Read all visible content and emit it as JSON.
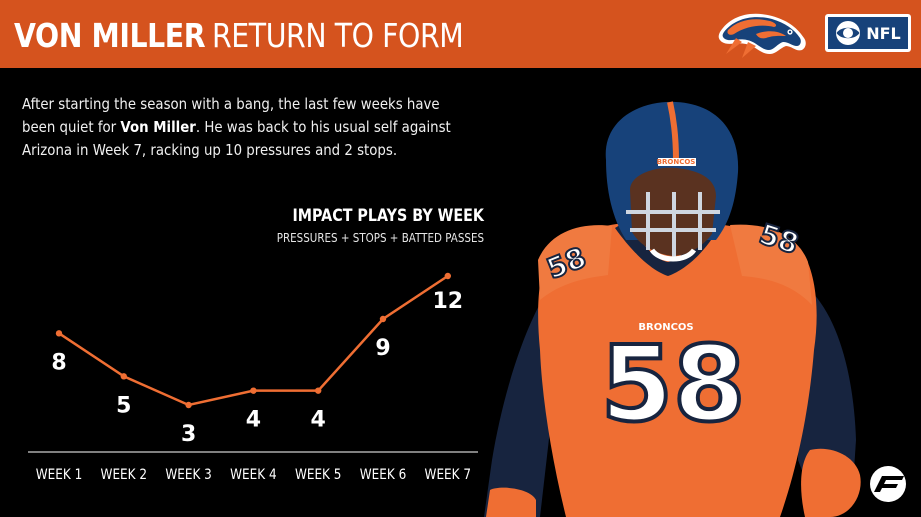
{
  "header": {
    "title_bold": "VON MILLER",
    "title_light": "RETURN TO FORM",
    "color": "#d5531e",
    "nfl_label": "NFL"
  },
  "intro": {
    "line1": "After starting the season with a bang, the last few weeks have",
    "line2_pre": "been quiet for ",
    "line2_name": "Von Miller",
    "line2_post": ". He was back to his usual self against",
    "line3": "Arizona in Week 7, racking up 10 pressures and 2 stops."
  },
  "player": {
    "number": "58",
    "helmet_label": "BRONCOS",
    "chest_label": "BRONCOS"
  },
  "chart_data": {
    "type": "line",
    "title": "IMPACT PLAYS BY WEEK",
    "subtitle": "PRESSURES + STOPS + BATTED PASSES",
    "categories": [
      "WEEK 1",
      "WEEK 2",
      "WEEK 3",
      "WEEK 4",
      "WEEK 5",
      "WEEK 6",
      "WEEK 7"
    ],
    "series": [
      {
        "values": [
          8,
          5,
          3,
          4,
          4,
          9,
          12
        ]
      }
    ],
    "ylim": [
      3,
      12
    ],
    "grid": false,
    "line_color": "#ef6e33"
  }
}
